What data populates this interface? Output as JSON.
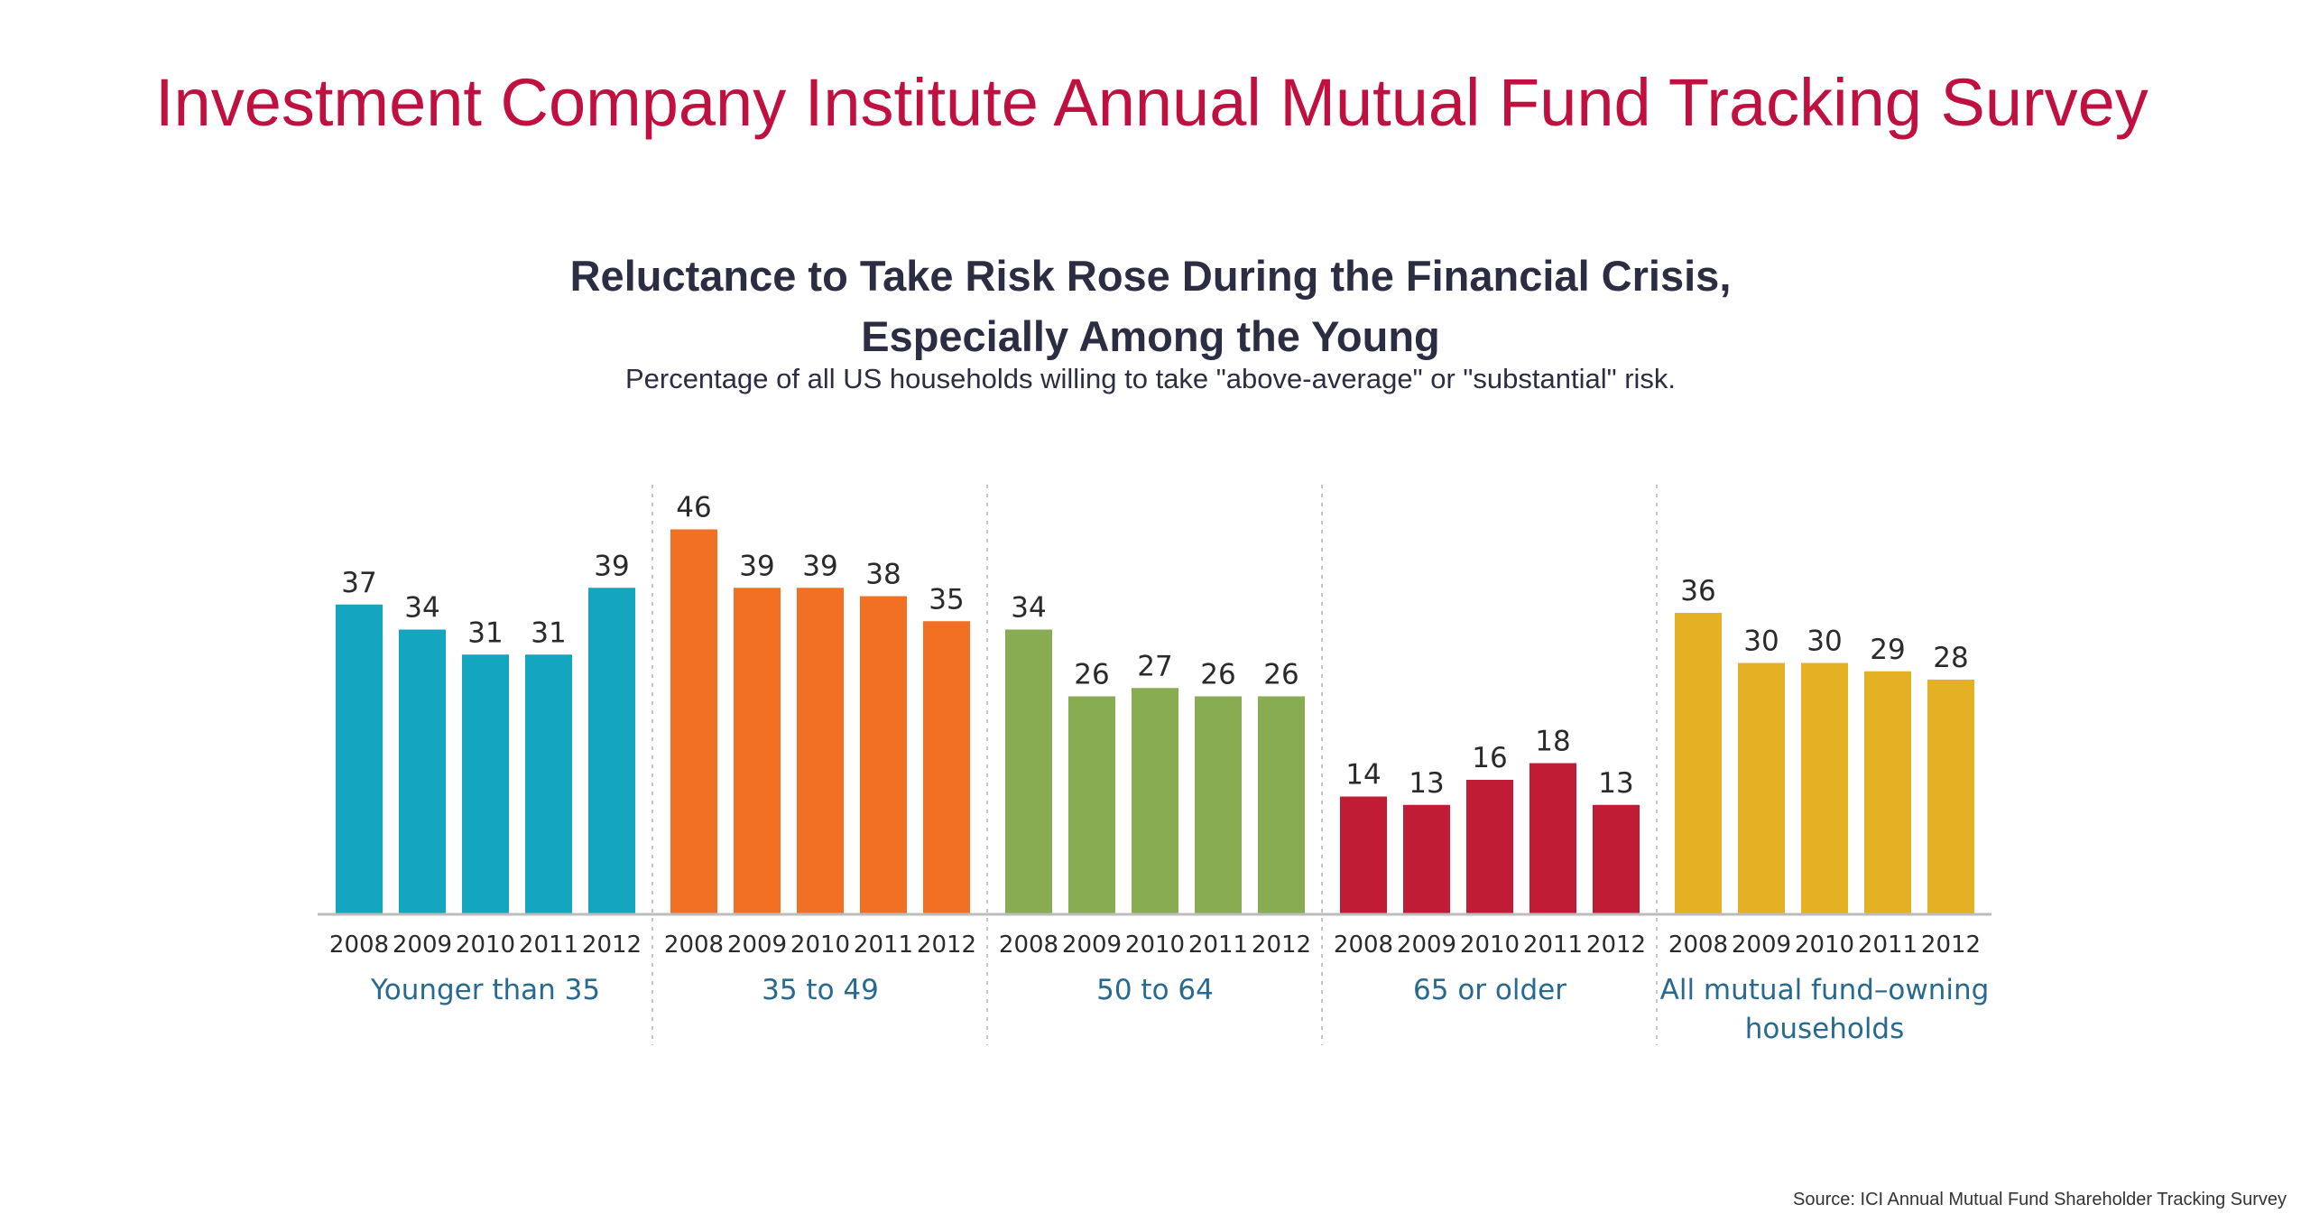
{
  "slide": {
    "title": "Investment Company Institute Annual Mutual Fund Tracking Survey",
    "source": "Source: ICI Annual Mutual Fund Shareholder Tracking Survey"
  },
  "chart_data": {
    "type": "bar",
    "title_line1": "Reluctance to Take Risk Rose During the Financial Crisis,",
    "title_line2": "Especially Among the Young",
    "subtitle": "Percentage of all US households willing to take \"above-average\" or \"substantial\" risk.",
    "categories": [
      "2008",
      "2009",
      "2010",
      "2011",
      "2012"
    ],
    "ylim": [
      0,
      50
    ],
    "grid": false,
    "data_labels": true,
    "groups": [
      {
        "name": "Younger than 35",
        "name_lines": [
          "Younger than 35"
        ],
        "color": "#14a5bf",
        "values": [
          37,
          34,
          31,
          31,
          39
        ]
      },
      {
        "name": "35 to 49",
        "name_lines": [
          "35 to 49"
        ],
        "color": "#f27024",
        "values": [
          46,
          39,
          39,
          38,
          35
        ]
      },
      {
        "name": "50 to 64",
        "name_lines": [
          "50 to 64"
        ],
        "color": "#87ac52",
        "values": [
          34,
          26,
          27,
          26,
          26
        ]
      },
      {
        "name": "65 or older",
        "name_lines": [
          "65 or older"
        ],
        "color": "#c01c36",
        "values": [
          14,
          13,
          16,
          18,
          13
        ]
      },
      {
        "name": "All mutual fund–owning households",
        "name_lines": [
          "All mutual fund–owning",
          "households"
        ],
        "color": "#e5b124",
        "values": [
          36,
          30,
          30,
          29,
          28
        ]
      }
    ],
    "colors": {
      "baseline": "#bcbcbc",
      "divider": "#c4c4c4",
      "value_label": "#2a2a2a",
      "year_label": "#2a2a2a",
      "group_label": "#27698f"
    }
  }
}
